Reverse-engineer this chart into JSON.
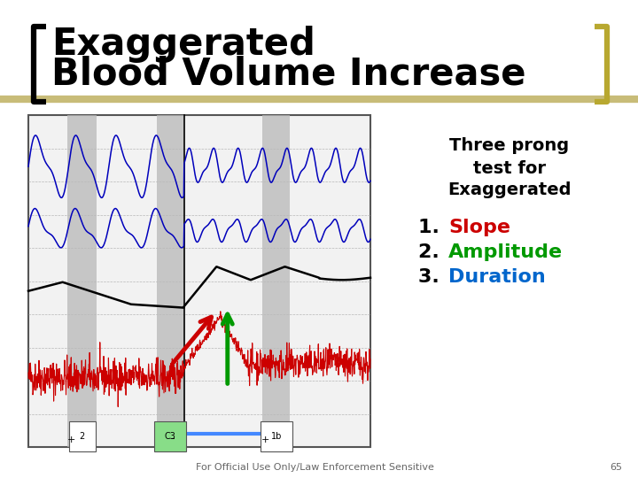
{
  "title_line1": "Exaggerated",
  "title_line2": "Blood Volume Increase",
  "title_fontsize": 30,
  "title_color": "#000000",
  "background_color": "#ffffff",
  "bracket_color": "#000000",
  "bracket_color_gold": "#b8a830",
  "footer_text": "For Official Use Only/Law Enforcement Sensitive",
  "footer_page": "65",
  "text_three_prong": "Three prong\ntest for\nExaggerated",
  "list_items": [
    "1. Slope",
    "2. Amplitude",
    "3. Duration"
  ],
  "list_colors": [
    "#cc0000",
    "#009900",
    "#0066cc"
  ],
  "list_fontsize": 16,
  "separator_line_color": "#c8bc78",
  "chart_bg": "#f0f0f0"
}
